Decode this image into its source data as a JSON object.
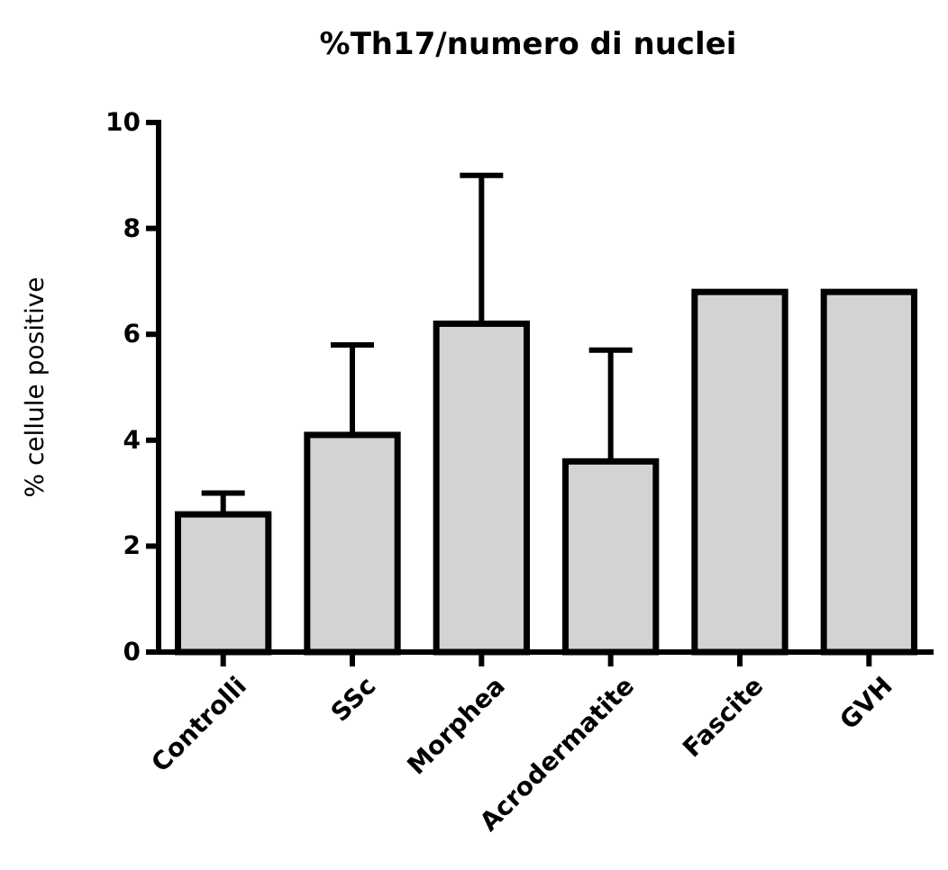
{
  "chart_data": {
    "type": "bar",
    "title": "%Th17/numero di nuclei",
    "ylabel": "% cellule positive",
    "categories": [
      "Controlli",
      "SSc",
      "Morphea",
      "Acrodermatite",
      "Fascite",
      "GVH"
    ],
    "values": [
      2.6,
      4.1,
      6.2,
      3.6,
      6.8,
      6.8
    ],
    "errors": [
      [
        2.6,
        3.0
      ],
      [
        4.1,
        5.8
      ],
      [
        6.2,
        9.0
      ],
      [
        3.6,
        5.7
      ],
      null,
      null
    ],
    "color": "#d3d3d3",
    "ylim": [
      0,
      10
    ],
    "yticks": [
      0,
      2,
      4,
      6,
      8,
      10
    ]
  }
}
